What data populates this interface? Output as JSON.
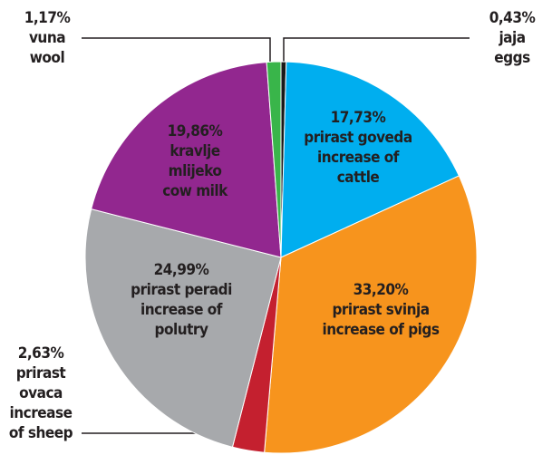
{
  "chart_data": {
    "type": "pie",
    "categories": [
      "jaja",
      "prirast goveda",
      "prirast svinja",
      "prirast ovaca",
      "prirast peradi",
      "kravlje mlijeko",
      "vuna"
    ],
    "values": [
      0.43,
      17.73,
      33.2,
      2.63,
      24.99,
      19.86,
      1.17
    ],
    "value_labels": [
      "0,43%",
      "17,73%",
      "33,20%",
      "2,63%",
      "24,99%",
      "19,86%",
      "1,17%"
    ],
    "label_lines": [
      [
        "jaja",
        "eggs"
      ],
      [
        "prirast goveda",
        "increase of",
        "cattle"
      ],
      [
        "prirast svinja",
        "increase of pigs"
      ],
      [
        "prirast",
        "ovaca",
        "increase",
        "of sheep"
      ],
      [
        "prirast peradi",
        "increase of",
        "polutry"
      ],
      [
        "kravlje",
        "mlijeko",
        "cow milk"
      ],
      [
        "vuna",
        "wool"
      ]
    ],
    "colors": [
      "#1a1a1a",
      "#00aeef",
      "#f7941d",
      "#c4202f",
      "#a7a9ac",
      "#92278f",
      "#39b54a"
    ]
  }
}
